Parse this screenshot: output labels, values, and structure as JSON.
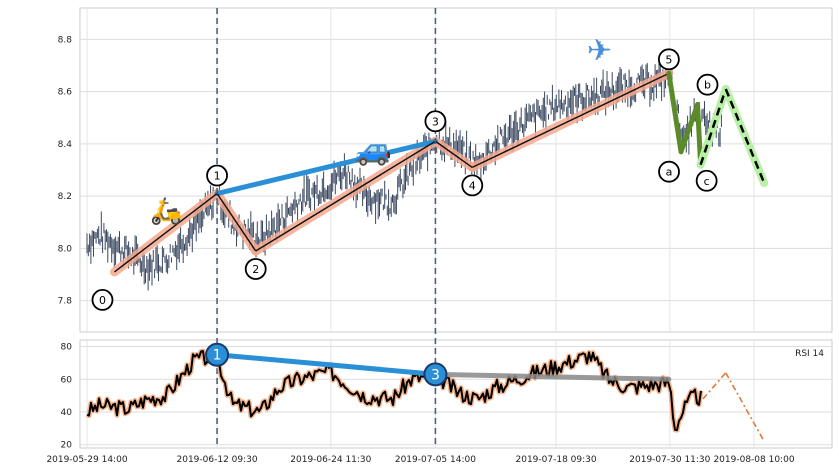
{
  "chart_data": [
    {
      "type": "line",
      "panel": "price",
      "y_ticks": [
        "7.8",
        "8.0",
        "8.2",
        "8.4",
        "8.6",
        "8.8"
      ],
      "ylim": [
        7.68,
        8.92
      ],
      "grid": true,
      "series": [
        {
          "style": "candlestick-like thin dark bars",
          "x": [
            "2019-05-29 14:00",
            "2019-05-31",
            "2019-06-03",
            "2019-06-05",
            "2019-06-07",
            "2019-06-10",
            "2019-06-12 09:30",
            "2019-06-14",
            "2019-06-17",
            "2019-06-19",
            "2019-06-21",
            "2019-06-24 11:30",
            "2019-06-26",
            "2019-06-28",
            "2019-07-01",
            "2019-07-03",
            "2019-07-05 14:00",
            "2019-07-08",
            "2019-07-10",
            "2019-07-12",
            "2019-07-15",
            "2019-07-18 09:30",
            "2019-07-22",
            "2019-07-24",
            "2019-07-26",
            "2019-07-30 11:30",
            "2019-08-01",
            "2019-08-02",
            "2019-08-05"
          ],
          "values": [
            8.02,
            8.05,
            7.98,
            7.93,
            7.96,
            8.08,
            8.2,
            8.1,
            8.03,
            8.1,
            8.18,
            8.25,
            8.3,
            8.2,
            8.18,
            8.3,
            8.42,
            8.38,
            8.32,
            8.4,
            8.48,
            8.55,
            8.58,
            8.6,
            8.62,
            8.65,
            8.4,
            8.5,
            8.45
          ]
        }
      ],
      "waves": [
        {
          "label": "0",
          "x": "2019-06-01 12:00",
          "y": 7.91
        },
        {
          "label": "1",
          "x": "2019-06-12 09:30",
          "y": 8.21
        },
        {
          "label": "2",
          "x": "2019-06-16 12:00",
          "y": 7.99
        },
        {
          "label": "3",
          "x": "2019-07-05 14:00",
          "y": 8.41
        },
        {
          "label": "4",
          "x": "2019-07-09 12:00",
          "y": 8.31
        },
        {
          "label": "5",
          "x": "2019-07-30 09:00",
          "y": 8.67
        },
        {
          "label": "a",
          "x": "2019-07-31 16:00",
          "y": 8.37
        },
        {
          "label": "b",
          "x": "2019-08-02 10:00",
          "y": 8.55
        },
        {
          "label": "c",
          "x": "2019-08-02 18:00",
          "y": 8.32
        }
      ],
      "projection": [
        {
          "x": "2019-08-02 18:00",
          "y": 8.32
        },
        {
          "x": "2019-08-05 10:00",
          "y": 8.61
        },
        {
          "x": "2019-08-09 12:00",
          "y": 8.25
        }
      ],
      "trend_line": [
        {
          "x": "2019-06-12 09:30",
          "y": 8.21
        },
        {
          "x": "2019-07-05 14:00",
          "y": 8.41
        }
      ],
      "vertical_markers": [
        "2019-06-12 09:30",
        "2019-07-05 14:00"
      ],
      "icons": [
        {
          "name": "scooter-icon",
          "glyph": "🛵"
        },
        {
          "name": "car-icon",
          "glyph": "🚙"
        },
        {
          "name": "airplane-icon",
          "glyph": "✈"
        }
      ]
    },
    {
      "type": "line",
      "panel": "rsi",
      "title": "RSI 14",
      "y_ticks": [
        "20",
        "40",
        "60",
        "80"
      ],
      "ylim": [
        18,
        84
      ],
      "x_ticks": [
        "2019-05-29 14:00",
        "2019-06-12 09:30",
        "2019-06-24 11:30",
        "2019-07-05 14:00",
        "2019-07-18 09:30",
        "2019-07-30 11:30",
        "2019-08-08 10:00"
      ],
      "grid": true,
      "series": [
        {
          "x": [
            "2019-05-29 14:00",
            "2019-05-31",
            "2019-06-03",
            "2019-06-05",
            "2019-06-07",
            "2019-06-10",
            "2019-06-12 09:30",
            "2019-06-14",
            "2019-06-17",
            "2019-06-19",
            "2019-06-21",
            "2019-06-24 11:30",
            "2019-06-26",
            "2019-06-28",
            "2019-07-01",
            "2019-07-03",
            "2019-07-05 14:00",
            "2019-07-08",
            "2019-07-10",
            "2019-07-12",
            "2019-07-15",
            "2019-07-18 09:30",
            "2019-07-22",
            "2019-07-24",
            "2019-07-26",
            "2019-07-30 11:30",
            "2019-07-31",
            "2019-08-01",
            "2019-08-02",
            "2019-08-03"
          ],
          "values": [
            40,
            44,
            42,
            48,
            50,
            72,
            74,
            45,
            40,
            55,
            60,
            65,
            58,
            50,
            48,
            60,
            63,
            52,
            48,
            55,
            62,
            68,
            75,
            60,
            55,
            58,
            30,
            42,
            50,
            48
          ]
        }
      ],
      "projection": [
        {
          "x": "2019-08-03",
          "y": 48
        },
        {
          "x": "2019-08-05 10:00",
          "y": 64
        },
        {
          "x": "2019-08-09 12:00",
          "y": 22
        }
      ],
      "divergence": [
        {
          "label": "1",
          "x": "2019-06-12 09:30",
          "y": 75
        },
        {
          "label": "3",
          "x": "2019-07-05 14:00",
          "y": 63
        },
        {
          "x": "2019-07-30 09:00",
          "y": 60
        }
      ]
    }
  ]
}
